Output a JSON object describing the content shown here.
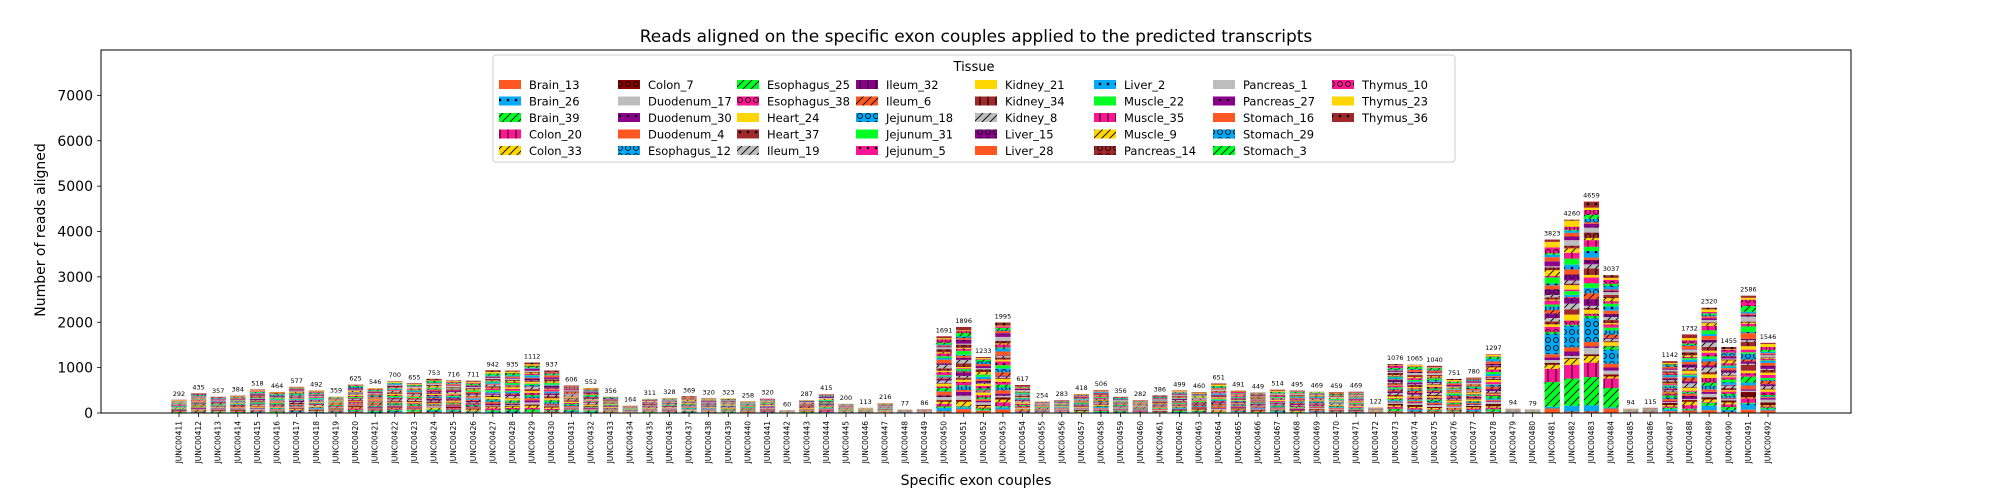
{
  "chart_data": {
    "type": "bar",
    "stacked": true,
    "title": "Reads aligned on the specific exon couples applied to the predicted transcripts",
    "xlabel": "Specific exon couples",
    "ylabel": "Number of reads aligned",
    "ylim": [
      0,
      8000
    ],
    "yticks": [
      0,
      1000,
      2000,
      3000,
      4000,
      5000,
      6000,
      7000
    ],
    "grid": false,
    "legend": {
      "title": "Tissue",
      "placement": "top-center",
      "columns": 8
    },
    "series": [
      {
        "name": "Brain_13",
        "color": "#ff5722",
        "hatch": "none"
      },
      {
        "name": "Brain_26",
        "color": "#03a9f4",
        "hatch": "dot"
      },
      {
        "name": "Brain_39",
        "color": "#00ff22",
        "hatch": "slash"
      },
      {
        "name": "Colon_20",
        "color": "#ff1493",
        "hatch": "vline"
      },
      {
        "name": "Colon_33",
        "color": "#ffd700",
        "hatch": "slash"
      },
      {
        "name": "Colon_7",
        "color": "#8b0000",
        "hatch": "circle"
      },
      {
        "name": "Duodenum_17",
        "color": "#bdbdbd",
        "hatch": "none"
      },
      {
        "name": "Duodenum_30",
        "color": "#8b008b",
        "hatch": "dot"
      },
      {
        "name": "Duodenum_4",
        "color": "#ff5722",
        "hatch": "none"
      },
      {
        "name": "Esophagus_12",
        "color": "#03a9f4",
        "hatch": "circle"
      },
      {
        "name": "Esophagus_25",
        "color": "#00ff22",
        "hatch": "slash"
      },
      {
        "name": "Esophagus_38",
        "color": "#ff1493",
        "hatch": "circle"
      },
      {
        "name": "Heart_24",
        "color": "#ffd700",
        "hatch": "none"
      },
      {
        "name": "Heart_37",
        "color": "#a0282b",
        "hatch": "dot"
      },
      {
        "name": "Ileum_19",
        "color": "#bdbdbd",
        "hatch": "slash"
      },
      {
        "name": "Ileum_32",
        "color": "#8b008b",
        "hatch": "vline"
      },
      {
        "name": "Ileum_6",
        "color": "#ff5722",
        "hatch": "slash"
      },
      {
        "name": "Jejunum_18",
        "color": "#03a9f4",
        "hatch": "circle"
      },
      {
        "name": "Jejunum_31",
        "color": "#00ff22",
        "hatch": "none"
      },
      {
        "name": "Jejunum_5",
        "color": "#ff1493",
        "hatch": "dot"
      },
      {
        "name": "Kidney_21",
        "color": "#ffd700",
        "hatch": "none"
      },
      {
        "name": "Kidney_34",
        "color": "#a0282b",
        "hatch": "vline"
      },
      {
        "name": "Kidney_8",
        "color": "#bdbdbd",
        "hatch": "slash"
      },
      {
        "name": "Liver_15",
        "color": "#8b008b",
        "hatch": "circle"
      },
      {
        "name": "Liver_28",
        "color": "#ff5722",
        "hatch": "none"
      },
      {
        "name": "Liver_2",
        "color": "#03a9f4",
        "hatch": "dot"
      },
      {
        "name": "Muscle_22",
        "color": "#00ff22",
        "hatch": "none"
      },
      {
        "name": "Muscle_35",
        "color": "#ff1493",
        "hatch": "vline"
      },
      {
        "name": "Muscle_9",
        "color": "#ffd700",
        "hatch": "slash"
      },
      {
        "name": "Pancreas_14",
        "color": "#a0282b",
        "hatch": "circle"
      },
      {
        "name": "Pancreas_1",
        "color": "#bdbdbd",
        "hatch": "none"
      },
      {
        "name": "Pancreas_27",
        "color": "#8b008b",
        "hatch": "dot"
      },
      {
        "name": "Stomach_16",
        "color": "#ff5722",
        "hatch": "none"
      },
      {
        "name": "Stomach_29",
        "color": "#03a9f4",
        "hatch": "circle"
      },
      {
        "name": "Stomach_3",
        "color": "#00ff22",
        "hatch": "slash"
      },
      {
        "name": "Thymus_10",
        "color": "#ff1493",
        "hatch": "circle"
      },
      {
        "name": "Thymus_23",
        "color": "#ffd700",
        "hatch": "none"
      },
      {
        "name": "Thymus_36",
        "color": "#a0282b",
        "hatch": "dot"
      }
    ],
    "categories": [
      "JUNC00411",
      "JUNC00412",
      "JUNC00413",
      "JUNC00414",
      "JUNC00415",
      "JUNC00416",
      "JUNC00417",
      "JUNC00418",
      "JUNC00419",
      "JUNC00420",
      "JUNC00421",
      "JUNC00422",
      "JUNC00423",
      "JUNC00424",
      "JUNC00425",
      "JUNC00426",
      "JUNC00427",
      "JUNC00428",
      "JUNC00429",
      "JUNC00430",
      "JUNC00431",
      "JUNC00432",
      "JUNC00433",
      "JUNC00434",
      "JUNC00435",
      "JUNC00436",
      "JUNC00437",
      "JUNC00438",
      "JUNC00439",
      "JUNC00440",
      "JUNC00441",
      "JUNC00442",
      "JUNC00443",
      "JUNC00444",
      "JUNC00445",
      "JUNC00446",
      "JUNC00447",
      "JUNC00448",
      "JUNC00449",
      "JUNC00450",
      "JUNC00451",
      "JUNC00452",
      "JUNC00453",
      "JUNC00454",
      "JUNC00455",
      "JUNC00456",
      "JUNC00457",
      "JUNC00458",
      "JUNC00459",
      "JUNC00460",
      "JUNC00461",
      "JUNC00462",
      "JUNC00463",
      "JUNC00464",
      "JUNC00465",
      "JUNC00466",
      "JUNC00467",
      "JUNC00468",
      "JUNC00469",
      "JUNC00470",
      "JUNC00471",
      "JUNC00472",
      "JUNC00473",
      "JUNC00474",
      "JUNC00475",
      "JUNC00476",
      "JUNC00477",
      "JUNC00478",
      "JUNC00479",
      "JUNC00480",
      "JUNC00481",
      "JUNC00482",
      "JUNC00483",
      "JUNC00484",
      "JUNC00485",
      "JUNC00486",
      "JUNC00487",
      "JUNC00488",
      "JUNC00489",
      "JUNC00490",
      "JUNC00491",
      "JUNC00492"
    ],
    "totals": [
      292,
      435,
      357,
      384,
      518,
      464,
      577,
      492,
      359,
      625,
      546,
      700,
      655,
      753,
      716,
      711,
      942,
      935,
      1112,
      937,
      606,
      552,
      356,
      164,
      311,
      328,
      369,
      320,
      323,
      258,
      320,
      60,
      287,
      415,
      200,
      113,
      216,
      77,
      86,
      1691,
      1896,
      1233,
      1995,
      617,
      254,
      283,
      418,
      506,
      356,
      282,
      386,
      499,
      460,
      651,
      491,
      449,
      514,
      495,
      469,
      459,
      469,
      122,
      1076,
      1065,
      1040,
      751,
      780,
      1297,
      94,
      79,
      3823,
      4260,
      4659,
      3037,
      94,
      115,
      1142,
      1732,
      2320,
      1455,
      2586,
      1546
    ]
  }
}
